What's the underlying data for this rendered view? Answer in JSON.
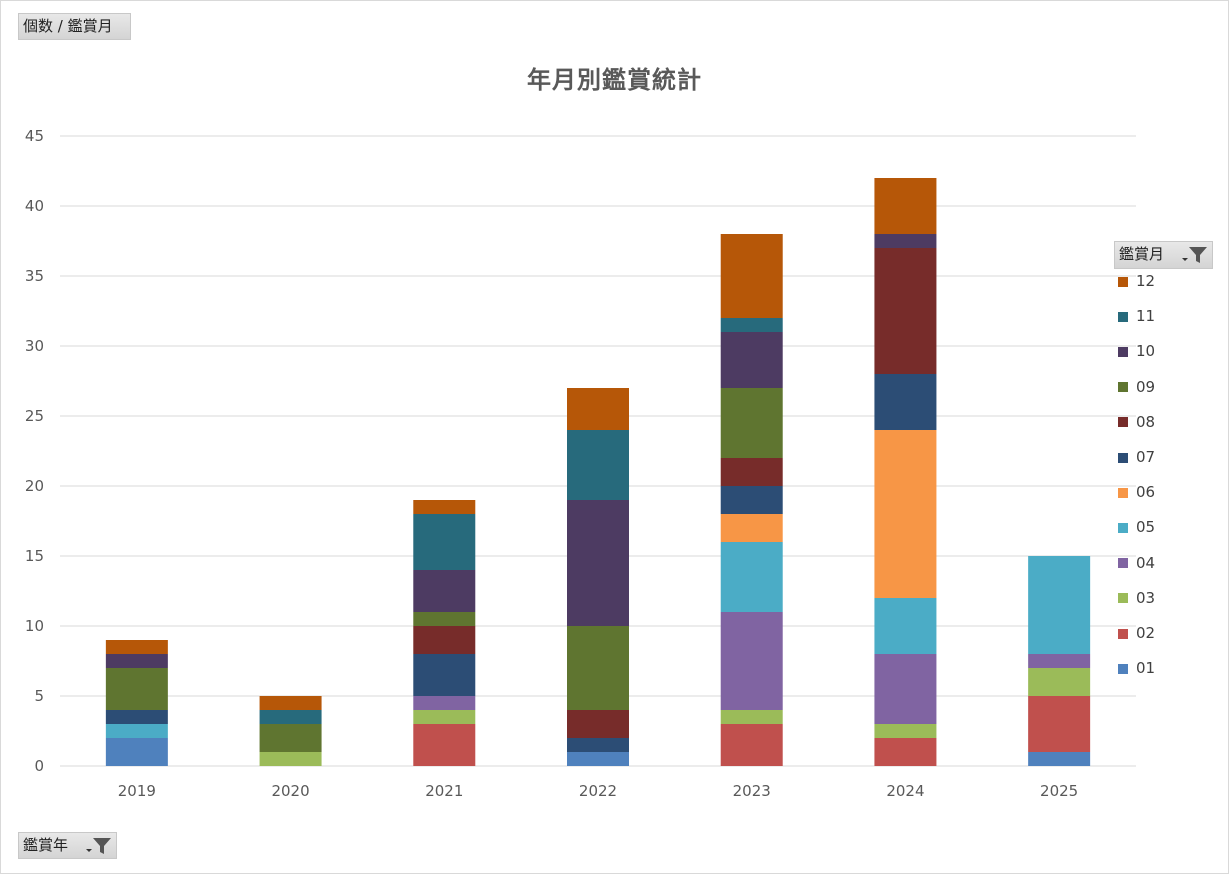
{
  "pivot": {
    "values_field_label": "個数 / 鑑賞月",
    "legend_field_label": "鑑賞月",
    "axis_field_label": "鑑賞年",
    "filter_icon": "funnel-filter-icon"
  },
  "chart_data": {
    "type": "bar",
    "stacked": true,
    "title": "年月別鑑賞統計",
    "xlabel": "",
    "ylabel": "",
    "ylim": [
      0,
      45
    ],
    "yticks": [
      "0",
      "5",
      "10",
      "15",
      "20",
      "25",
      "30",
      "35",
      "40",
      "45"
    ],
    "grid": true,
    "legend_position": "right",
    "categories": [
      "2019",
      "2020",
      "2021",
      "2022",
      "2023",
      "2024",
      "2025"
    ],
    "series": [
      {
        "name": "01",
        "color": "#4F81BD",
        "values": [
          2,
          0,
          0,
          1,
          0,
          0,
          1
        ]
      },
      {
        "name": "02",
        "color": "#C0504D",
        "values": [
          0,
          0,
          3,
          0,
          3,
          2,
          4
        ]
      },
      {
        "name": "03",
        "color": "#9BBB59",
        "values": [
          0,
          1,
          1,
          0,
          1,
          1,
          2
        ]
      },
      {
        "name": "04",
        "color": "#8064A2",
        "values": [
          0,
          0,
          1,
          0,
          7,
          5,
          1
        ]
      },
      {
        "name": "05",
        "color": "#4BACC6",
        "values": [
          1,
          0,
          0,
          0,
          5,
          4,
          7
        ]
      },
      {
        "name": "06",
        "color": "#F79646",
        "values": [
          0,
          0,
          0,
          0,
          2,
          12,
          0
        ]
      },
      {
        "name": "07",
        "color": "#2C4D75",
        "values": [
          1,
          0,
          3,
          1,
          2,
          4,
          0
        ]
      },
      {
        "name": "08",
        "color": "#772C2A",
        "values": [
          0,
          0,
          2,
          2,
          2,
          9,
          0
        ]
      },
      {
        "name": "09",
        "color": "#5F7530",
        "values": [
          3,
          2,
          1,
          6,
          5,
          0,
          0
        ]
      },
      {
        "name": "10",
        "color": "#4D3B62",
        "values": [
          1,
          0,
          3,
          9,
          4,
          1,
          0
        ]
      },
      {
        "name": "11",
        "color": "#276A7C",
        "values": [
          0,
          1,
          4,
          5,
          1,
          0,
          0
        ]
      },
      {
        "name": "12",
        "color": "#B65708",
        "values": [
          1,
          1,
          1,
          3,
          6,
          4,
          0
        ]
      }
    ]
  }
}
